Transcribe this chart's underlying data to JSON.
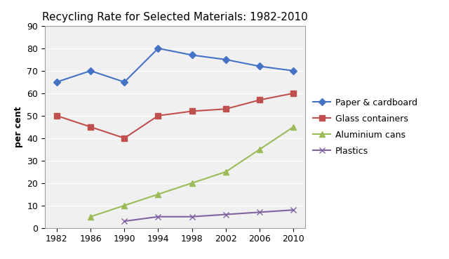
{
  "title": "Recycling Rate for Selected Materials: 1982-2010",
  "ylabel": "per cent",
  "years": [
    1982,
    1986,
    1990,
    1994,
    1998,
    2002,
    2006,
    2010
  ],
  "series": [
    {
      "label": "Paper & cardboard",
      "values": [
        65,
        70,
        65,
        80,
        77,
        75,
        72,
        70
      ],
      "color": "#4472C4",
      "marker": "D",
      "markersize": 5,
      "linewidth": 1.5
    },
    {
      "label": "Glass containers",
      "values": [
        50,
        45,
        40,
        50,
        52,
        53,
        57,
        60
      ],
      "color": "#C0504D",
      "marker": "s",
      "markersize": 6,
      "linewidth": 1.5
    },
    {
      "label": "Aluminium cans",
      "values": [
        null,
        5,
        10,
        15,
        20,
        25,
        35,
        45
      ],
      "color": "#9BBB59",
      "marker": "^",
      "markersize": 6,
      "linewidth": 1.5
    },
    {
      "label": "Plastics",
      "values": [
        null,
        null,
        3,
        5,
        5,
        6,
        7,
        8
      ],
      "color": "#8064A2",
      "marker": "x",
      "markersize": 6,
      "linewidth": 1.5
    }
  ],
  "ylim": [
    0,
    90
  ],
  "yticks": [
    0,
    10,
    20,
    30,
    40,
    50,
    60,
    70,
    80,
    90
  ],
  "plot_bgcolor": "#f0f0f0",
  "fig_bgcolor": "#ffffff",
  "grid_color": "#ffffff",
  "title_fontsize": 11,
  "axis_label_fontsize": 9,
  "tick_fontsize": 9,
  "legend_fontsize": 9
}
